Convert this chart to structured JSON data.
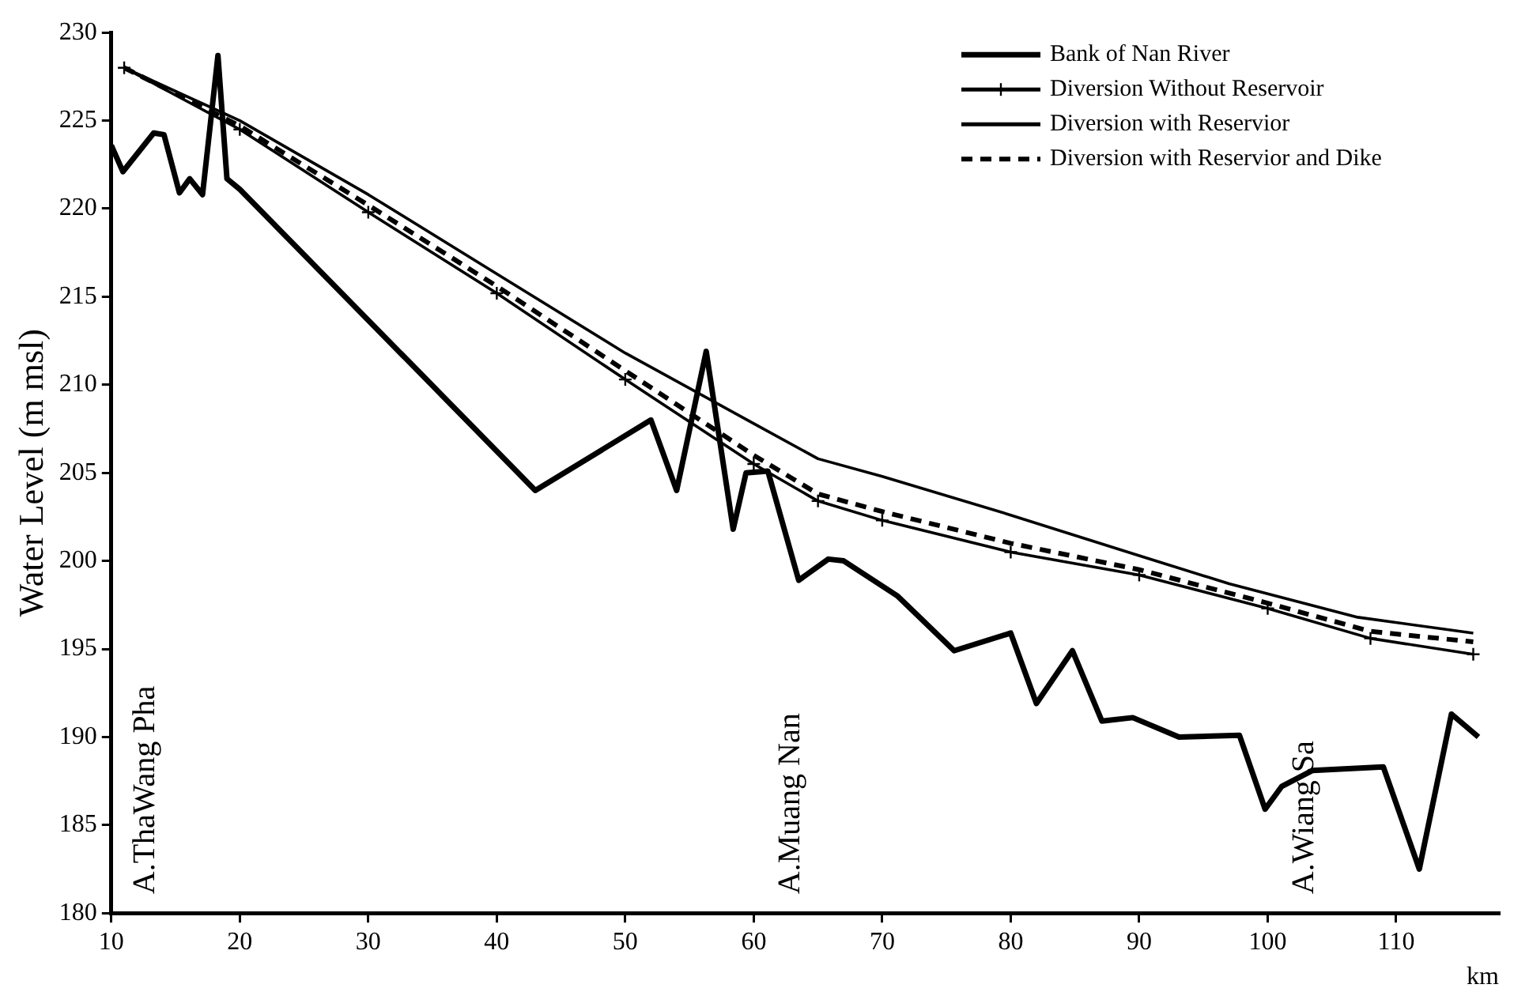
{
  "chart_data": {
    "type": "line",
    "ylabel": "Water Level (m msl)",
    "xlabel": "km",
    "xlim": [
      10,
      118
    ],
    "xticks": [
      10,
      20,
      30,
      40,
      50,
      60,
      70,
      80,
      90,
      100,
      110
    ],
    "ylim": [
      180,
      230
    ],
    "yticks": [
      180,
      185,
      190,
      195,
      200,
      205,
      210,
      215,
      220,
      225,
      230
    ],
    "grid": false,
    "legend": "top right",
    "marker": "none",
    "series": [
      {
        "name": "Bank of Nan River",
        "color": "#000000",
        "line_style": "solid",
        "x": [
          10,
          10.9,
          13.3,
          14.1,
          15.3,
          16.1,
          17.1,
          18.3,
          19,
          20,
          43,
          52,
          54,
          56.3,
          58.4,
          59.4,
          61.1,
          63.5,
          65.8,
          67,
          71.2,
          75.6,
          80,
          82,
          84.8,
          87.1,
          89.5,
          93.1,
          97.8,
          99.8,
          101.1,
          103.5,
          109,
          111.8,
          114.3,
          116.4
        ],
        "values": [
          223.6,
          222.1,
          224.3,
          224.2,
          220.9,
          221.7,
          220.8,
          228.7,
          221.7,
          221.1,
          204,
          208,
          204,
          211.9,
          201.8,
          205,
          205.1,
          198.9,
          200.1,
          200,
          198,
          194.9,
          195.9,
          191.9,
          194.9,
          190.9,
          191.1,
          190,
          190.1,
          185.9,
          187.2,
          188.1,
          188.3,
          182.5,
          191.3,
          190
        ]
      },
      {
        "name": "Diversion Without Reservoir",
        "color": "#000000",
        "line_style": "solid",
        "marker": "cross",
        "x": [
          11,
          20,
          30,
          40,
          50,
          60,
          65,
          70,
          80,
          90,
          100,
          108,
          116
        ],
        "values": [
          228,
          224.5,
          219.8,
          215.2,
          210.3,
          205.5,
          203.4,
          202.3,
          200.5,
          199.2,
          197.3,
          195.6,
          194.7
        ]
      },
      {
        "name": "Diversion with Reservior",
        "color": "#000000",
        "line_style": "solid",
        "x": [
          11,
          20,
          30,
          40,
          50,
          60,
          65,
          70,
          80,
          90,
          97,
          107,
          116
        ],
        "values": [
          228,
          225,
          220.8,
          216.3,
          211.8,
          207.8,
          205.8,
          204.8,
          202.6,
          200.3,
          198.7,
          196.8,
          195.9
        ]
      },
      {
        "name": "Diversion with Reservior and Dike",
        "color": "#000000",
        "line_style": "dashed",
        "x": [
          11,
          20,
          30,
          40,
          50,
          60,
          65,
          70,
          80,
          90,
          100,
          108,
          116
        ],
        "values": [
          228,
          224.7,
          220.2,
          215.6,
          210.8,
          206,
          203.8,
          202.8,
          201,
          199.5,
          197.6,
          196,
          195.4
        ]
      }
    ],
    "annotations": [
      "A.ThaWang Pha",
      "A.Muang Nan",
      "A.Wiang Sa"
    ]
  }
}
